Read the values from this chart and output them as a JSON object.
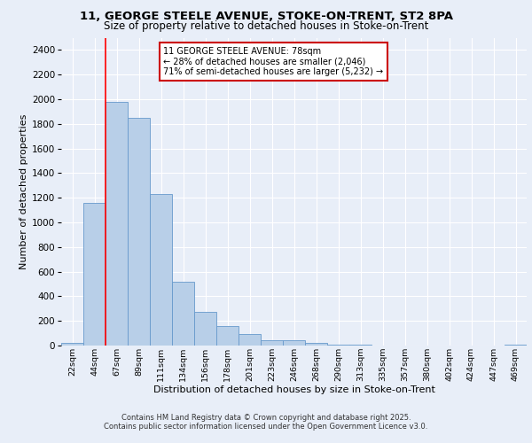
{
  "title_line1": "11, GEORGE STEELE AVENUE, STOKE-ON-TRENT, ST2 8PA",
  "title_line2": "Size of property relative to detached houses in Stoke-on-Trent",
  "xlabel": "Distribution of detached houses by size in Stoke-on-Trent",
  "ylabel": "Number of detached properties",
  "categories": [
    "22sqm",
    "44sqm",
    "67sqm",
    "89sqm",
    "111sqm",
    "134sqm",
    "156sqm",
    "178sqm",
    "201sqm",
    "223sqm",
    "246sqm",
    "268sqm",
    "290sqm",
    "313sqm",
    "335sqm",
    "357sqm",
    "380sqm",
    "402sqm",
    "424sqm",
    "447sqm",
    "469sqm"
  ],
  "values": [
    25,
    1160,
    1980,
    1850,
    1230,
    520,
    275,
    155,
    90,
    45,
    40,
    20,
    10,
    5,
    3,
    2,
    2,
    2,
    2,
    1,
    5
  ],
  "bar_color": "#b8cfe8",
  "bar_edge_color": "#6699cc",
  "red_line_bar_index": 2,
  "annotation_text": "11 GEORGE STEELE AVENUE: 78sqm\n← 28% of detached houses are smaller (2,046)\n71% of semi-detached houses are larger (5,232) →",
  "annotation_box_color": "#ffffff",
  "annotation_box_edge": "#cc0000",
  "ylim": [
    0,
    2500
  ],
  "yticks": [
    0,
    200,
    400,
    600,
    800,
    1000,
    1200,
    1400,
    1600,
    1800,
    2000,
    2200,
    2400
  ],
  "background_color": "#e8eef8",
  "grid_color": "#ffffff",
  "footer_line1": "Contains HM Land Registry data © Crown copyright and database right 2025.",
  "footer_line2": "Contains public sector information licensed under the Open Government Licence v3.0."
}
